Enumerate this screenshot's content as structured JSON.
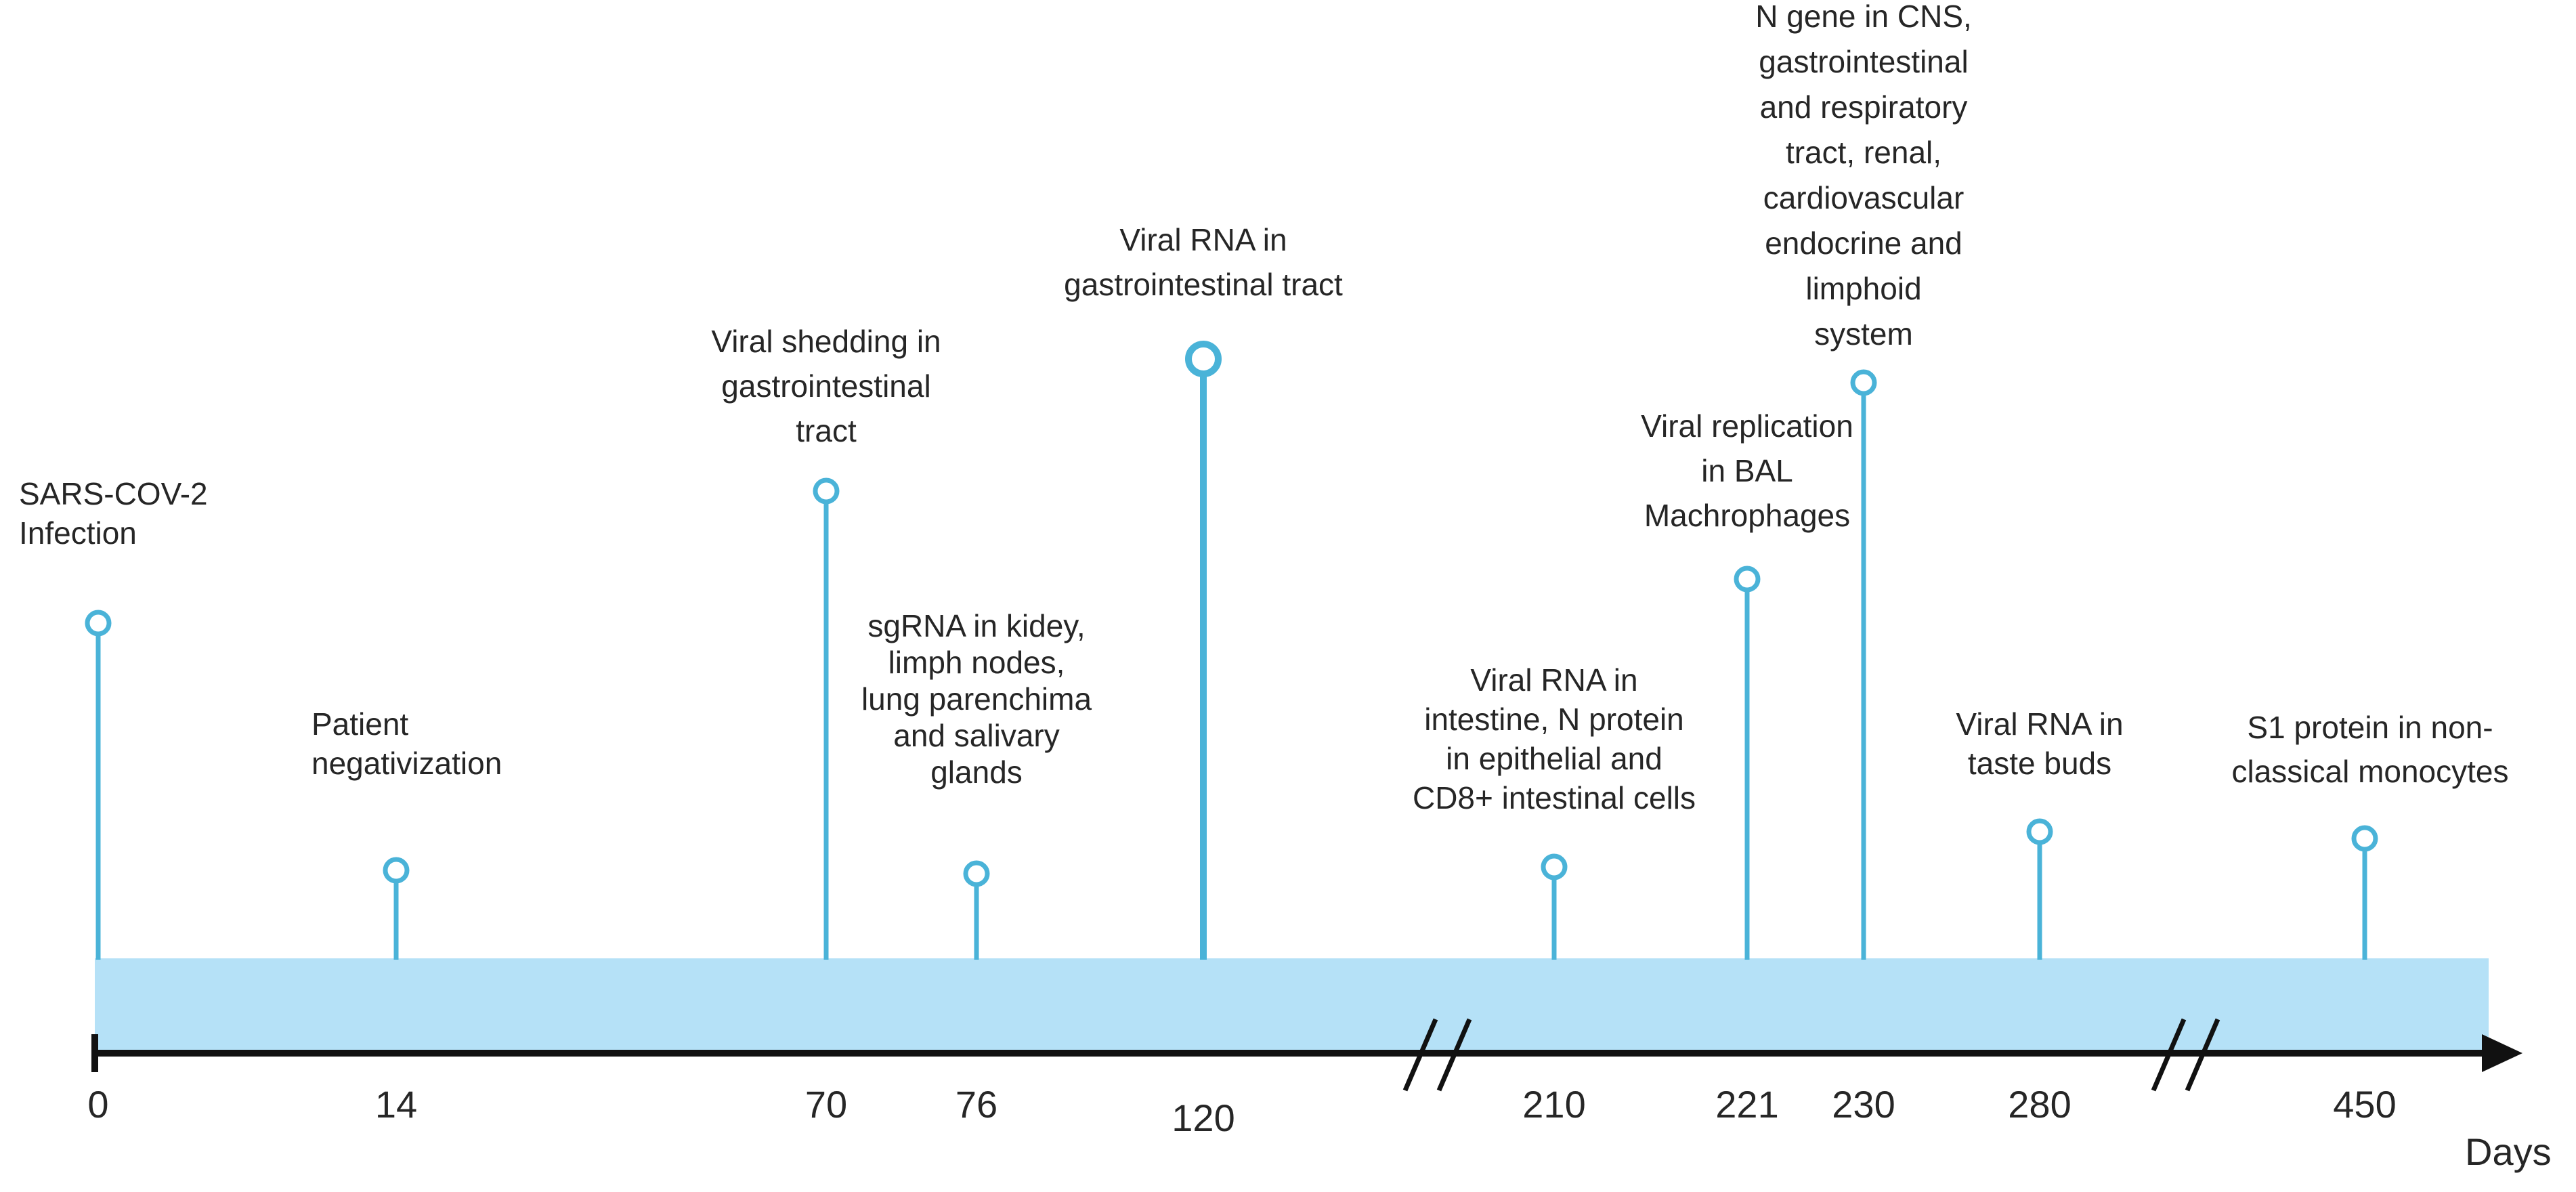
{
  "timeline": {
    "axis_label": "Days",
    "band_color": "#b5e1f7",
    "stem_color": "#4ab3d8",
    "axis_color": "#111111",
    "events": [
      {
        "day": "0",
        "label": [
          "SARS-COV-2",
          "Infection"
        ]
      },
      {
        "day": "14",
        "label": [
          "Patient",
          "negativization"
        ]
      },
      {
        "day": "70",
        "label": [
          "Viral shedding in",
          "gastrointestinal",
          "tract"
        ]
      },
      {
        "day": "76",
        "label": [
          "sgRNA in kidey,",
          "limph nodes,",
          "lung parenchima",
          "and salivary",
          "glands"
        ]
      },
      {
        "day": "120",
        "label": [
          "Viral RNA in",
          "gastrointestinal tract"
        ]
      },
      {
        "day": "210",
        "label": [
          "Viral RNA in",
          "intestine, N protein",
          "in epithelial and",
          "CD8+ intestinal cells"
        ]
      },
      {
        "day": "221",
        "label": [
          "Viral replication",
          "in BAL",
          "Machrophages"
        ]
      },
      {
        "day": "230",
        "label": [
          "N gene in CNS,",
          "gastrointestinal",
          "and respiratory",
          "tract, renal,",
          "cardiovascular",
          "endocrine and",
          "limphoid",
          "system"
        ]
      },
      {
        "day": "280",
        "label": [
          "Viral RNA in",
          "taste buds"
        ]
      },
      {
        "day": "450",
        "label": [
          "S1 protein in non-",
          "classical monocytes"
        ]
      }
    ]
  }
}
